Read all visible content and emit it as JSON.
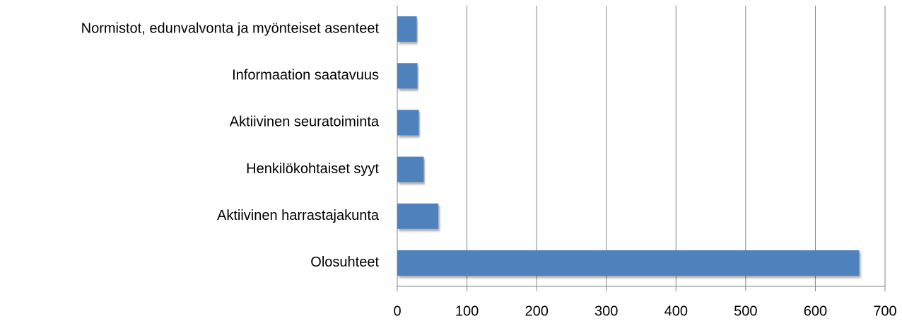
{
  "chart_data": {
    "type": "bar",
    "orientation": "horizontal",
    "categories": [
      "Normistot, edunvalvonta ja myönteiset asenteet",
      "Informaation saatavuus",
      "Aktiivinen seuratoiminta",
      "Henkilökohtaiset syyt",
      "Aktiivinen harrastajakunta",
      "Olosuhteet"
    ],
    "values": [
      28,
      29,
      31,
      38,
      59,
      663
    ],
    "color": "#4f81bd",
    "xlim": [
      0,
      700
    ],
    "xticks": [
      0,
      100,
      200,
      300,
      400,
      500,
      600,
      700
    ],
    "grid": true
  }
}
